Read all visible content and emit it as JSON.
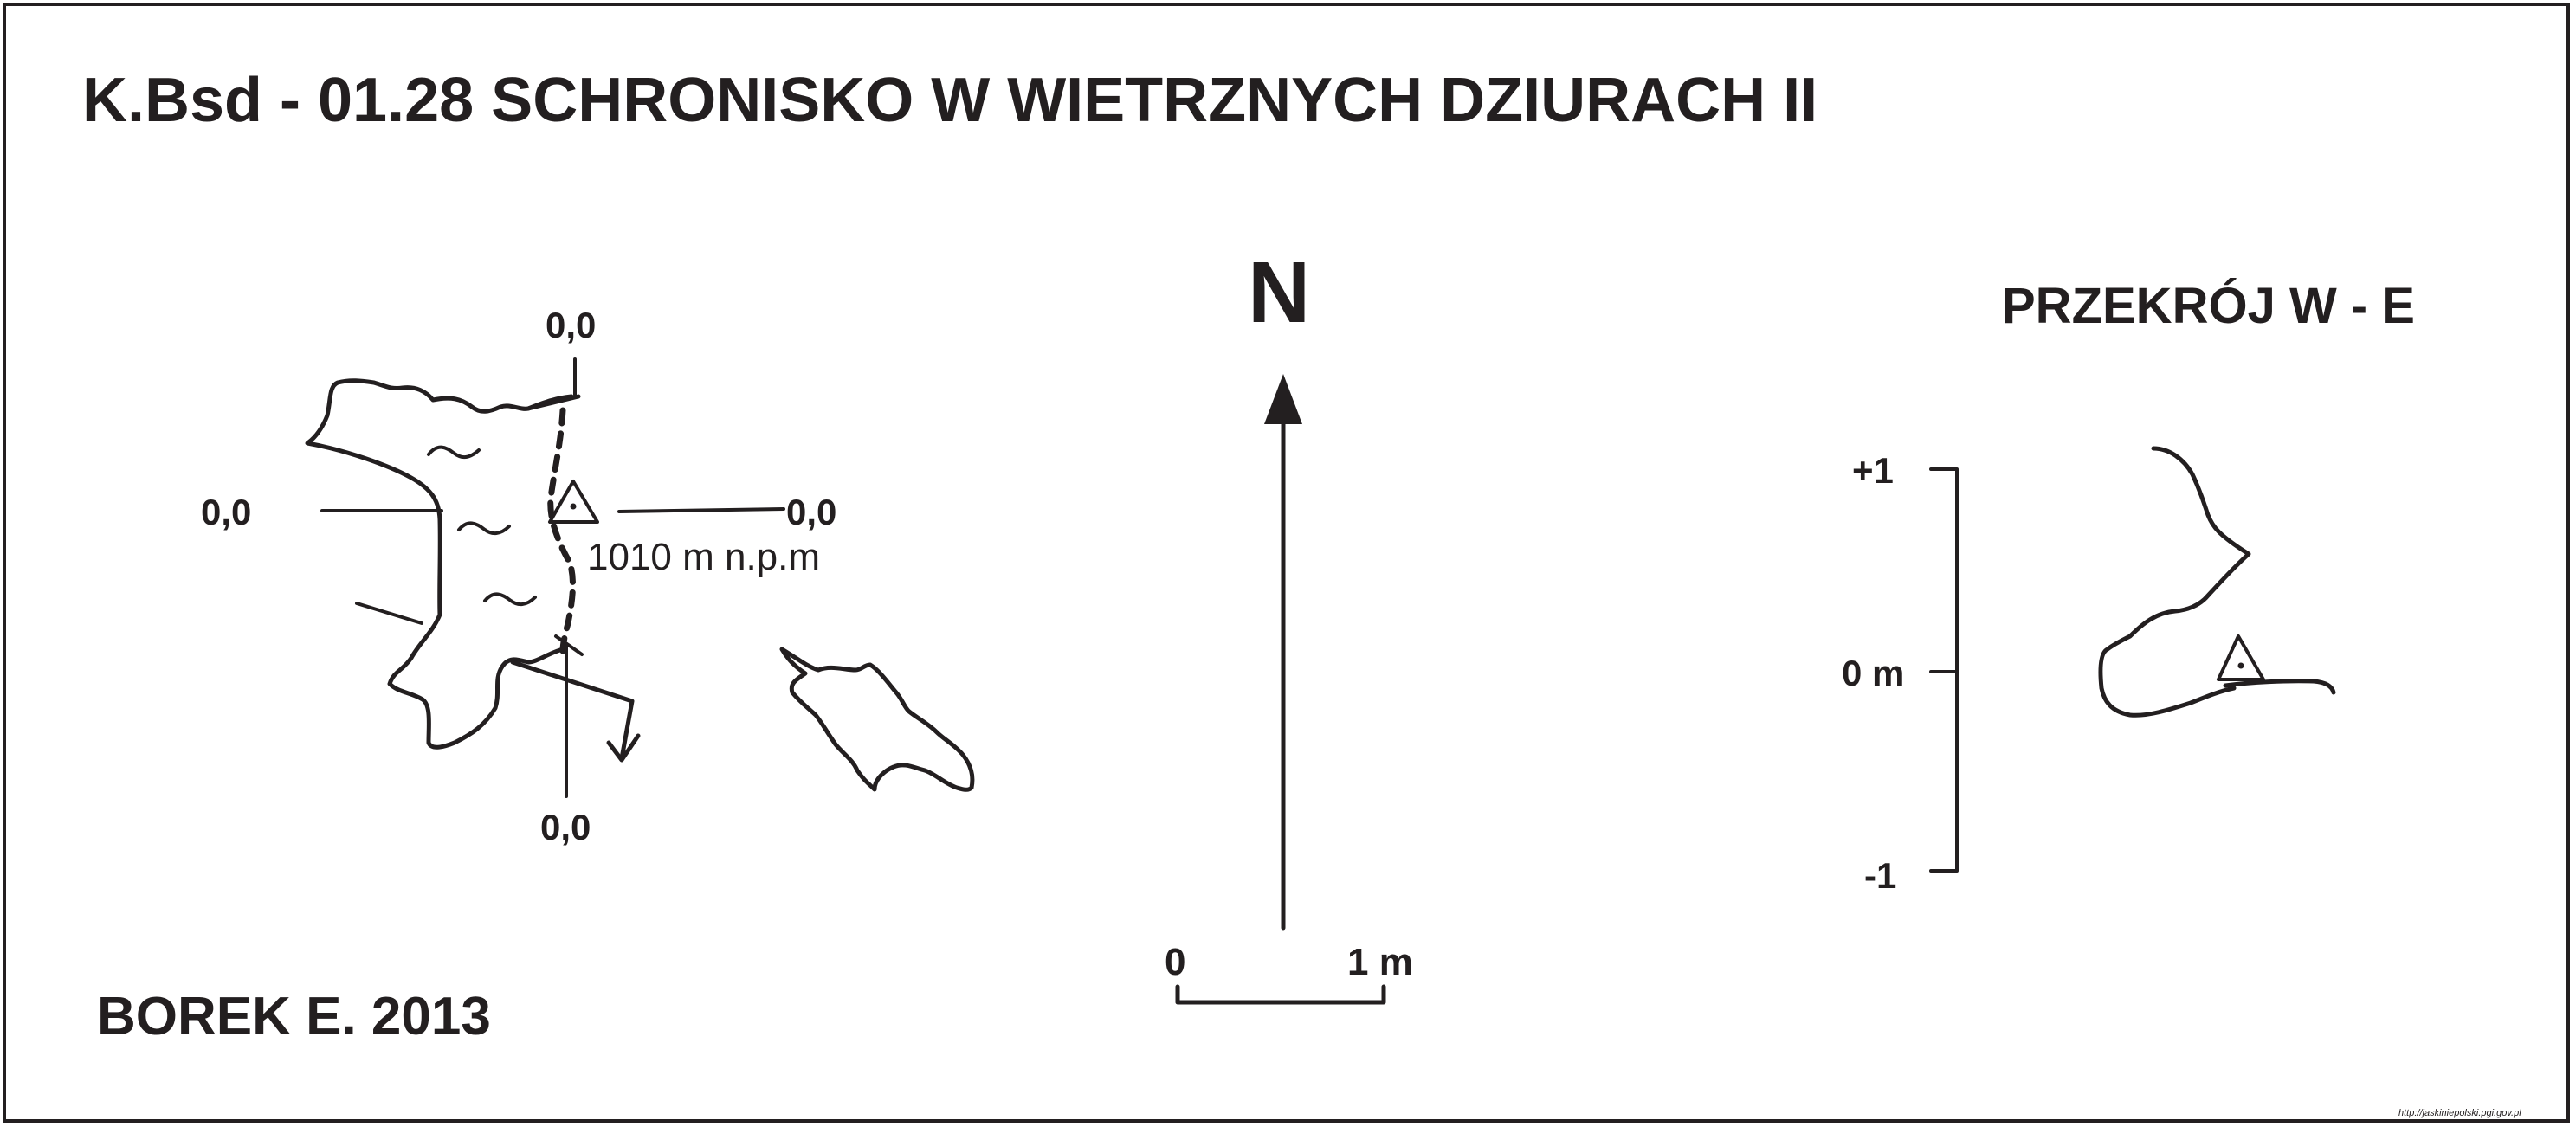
{
  "title": "K.Bsd - 01.28  SCHRONISKO W WIETRZNYCH DZIURACH II",
  "author": "BOREK E. 2013",
  "plan": {
    "elevation_top": "0,0",
    "elevation_left": "0,0",
    "elevation_right": "0,0",
    "elevation_bottom": "0,0",
    "altitude": "1010 m n.p.m"
  },
  "north": {
    "letter": "N"
  },
  "scale_bar": {
    "start": "0",
    "end": "1 m"
  },
  "section": {
    "title": "PRZEKRÓJ W - E",
    "tick_top": "+1",
    "tick_zero": "0 m",
    "tick_bottom": "-1"
  },
  "credit": "http://jaskiniepolski.pgi.gov.pl",
  "colors": {
    "ink": "#231f20",
    "background": "#ffffff"
  }
}
